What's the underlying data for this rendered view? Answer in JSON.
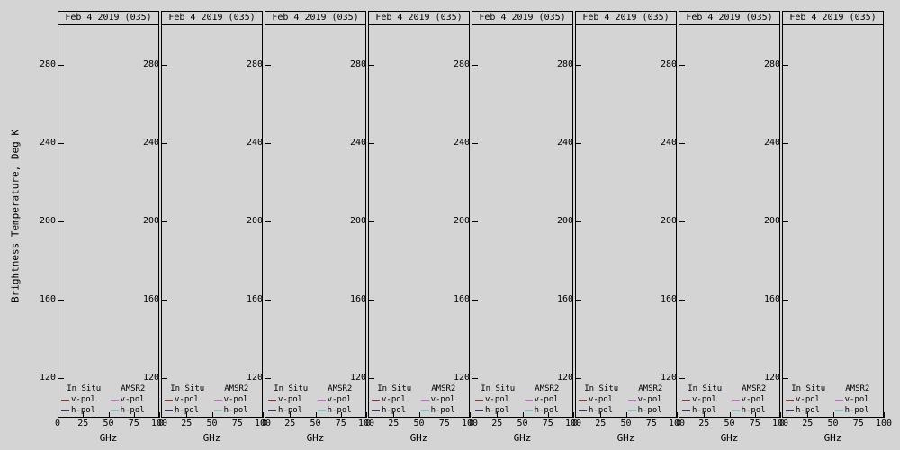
{
  "figure": {
    "bg_color": "#d4d4d4",
    "ylabel": "Brightness Temperature, Deg K",
    "panel_count": 8,
    "panel": {
      "title": "Feb 4 2019 (035)",
      "xlabel": "GHz"
    },
    "y_ticks": [
      "280",
      "240",
      "200",
      "160",
      "120"
    ],
    "x_ticks": [
      "0",
      "25",
      "50",
      "75",
      "100"
    ],
    "legend": {
      "insitu_header": "In Situ",
      "amsr2_header": "AMSR2",
      "vpol_label": "v-pol",
      "hpol_label": "h-pol",
      "insitu_vpol_color": "#993333",
      "insitu_hpol_color": "#333366",
      "amsr2_vpol_color": "#cc66cc",
      "amsr2_hpol_color": "#66cccc"
    }
  },
  "chart_data": {
    "type": "line",
    "title": "Feb 4 2019 (035)",
    "subplot_count": 8,
    "subplot_titles": [
      "Feb 4 2019 (035)",
      "Feb 4 2019 (035)",
      "Feb 4 2019 (035)",
      "Feb 4 2019 (035)",
      "Feb 4 2019 (035)",
      "Feb 4 2019 (035)",
      "Feb 4 2019 (035)",
      "Feb 4 2019 (035)"
    ],
    "xlabel": "GHz",
    "ylabel": "Brightness Temperature, Deg K",
    "xlim": [
      0,
      100
    ],
    "ylim": [
      100,
      300
    ],
    "x_ticks": [
      0,
      25,
      50,
      75,
      100
    ],
    "y_ticks": [
      120,
      160,
      200,
      240,
      280
    ],
    "legend_position": "inside bottom of each panel",
    "legend": [
      {
        "name": "In Situ v-pol",
        "color": "#993333"
      },
      {
        "name": "In Situ h-pol",
        "color": "#333366"
      },
      {
        "name": "AMSR2 v-pol",
        "color": "#cc66cc"
      },
      {
        "name": "AMSR2 h-pol",
        "color": "#66cccc"
      }
    ],
    "series": [],
    "note": "All 8 panels show identical empty axes (no data points plotted); only titles, axes, tick labels and legends are drawn."
  }
}
